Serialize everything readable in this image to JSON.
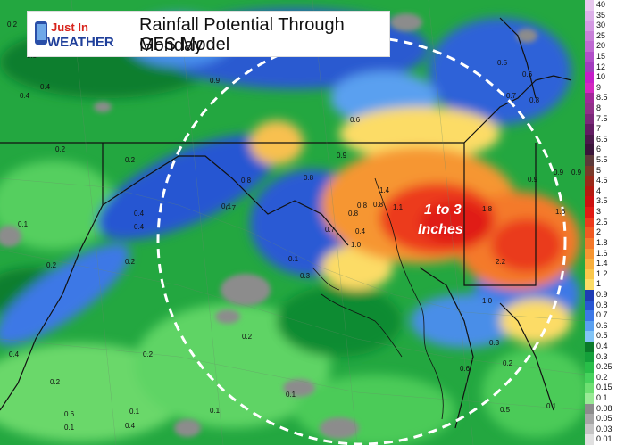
{
  "title": {
    "line1": "Rainfall Potential Through Monday",
    "line2": "GFS Model"
  },
  "logo": {
    "text_top": "Just In",
    "text_bottom": "WEATHER"
  },
  "callout": {
    "line1": "1 to 3",
    "line2": "Inches"
  },
  "legend": [
    {
      "label": "40",
      "color": "#e8c8ee"
    },
    {
      "label": "35",
      "color": "#dcb0e8"
    },
    {
      "label": "30",
      "color": "#d49ae2"
    },
    {
      "label": "25",
      "color": "#c880d8"
    },
    {
      "label": "20",
      "color": "#bf6ad2"
    },
    {
      "label": "15",
      "color": "#b04ec8"
    },
    {
      "label": "12",
      "color": "#a23cbe"
    },
    {
      "label": "10",
      "color": "#c41ec8"
    },
    {
      "label": "9",
      "color": "#d228c0"
    },
    {
      "label": "8.5",
      "color": "#a02898"
    },
    {
      "label": "8",
      "color": "#903088"
    },
    {
      "label": "7.5",
      "color": "#7a2878"
    },
    {
      "label": "7",
      "color": "#621c62"
    },
    {
      "label": "6.5",
      "color": "#4a1a4a"
    },
    {
      "label": "6",
      "color": "#3a163a"
    },
    {
      "label": "5.5",
      "color": "#5c3a3a"
    },
    {
      "label": "5",
      "color": "#7a3a2a"
    },
    {
      "label": "4.5",
      "color": "#9a2a1a"
    },
    {
      "label": "4",
      "color": "#b41a10"
    },
    {
      "label": "3.5",
      "color": "#cc1010"
    },
    {
      "label": "3",
      "color": "#e01a14"
    },
    {
      "label": "2.5",
      "color": "#ec3a1c"
    },
    {
      "label": "2",
      "color": "#f05a22"
    },
    {
      "label": "1.8",
      "color": "#f4782a"
    },
    {
      "label": "1.6",
      "color": "#f69632"
    },
    {
      "label": "1.4",
      "color": "#f8b03e"
    },
    {
      "label": "1.2",
      "color": "#fac84c"
    },
    {
      "label": "1",
      "color": "#fcdc66"
    },
    {
      "label": "0.9",
      "color": "#1e3cb4"
    },
    {
      "label": "0.8",
      "color": "#2856d2"
    },
    {
      "label": "0.7",
      "color": "#3c78e6"
    },
    {
      "label": "0.6",
      "color": "#5aa0f0"
    },
    {
      "label": "0.5",
      "color": "#82c4f6"
    },
    {
      "label": "0.4",
      "color": "#0a7a2a"
    },
    {
      "label": "0.3",
      "color": "#14a03a"
    },
    {
      "label": "0.25",
      "color": "#28be48"
    },
    {
      "label": "0.2",
      "color": "#46d25c"
    },
    {
      "label": "0.15",
      "color": "#6ee072"
    },
    {
      "label": "0.1",
      "color": "#9aea96"
    },
    {
      "label": "0.08",
      "color": "#8c8c8c"
    },
    {
      "label": "0.05",
      "color": "#a6a6a6"
    },
    {
      "label": "0.03",
      "color": "#c4c4c4"
    },
    {
      "label": "0.01",
      "color": "#e0e0e0"
    }
  ],
  "map_values": [
    {
      "v": "0.2"
    },
    {
      "v": "0.3"
    },
    {
      "v": "0.4"
    },
    {
      "v": "0.4"
    },
    {
      "v": "0.9"
    },
    {
      "v": "0.6"
    },
    {
      "v": "0.8"
    },
    {
      "v": "0.8"
    },
    {
      "v": "0.9"
    },
    {
      "v": "0.5"
    },
    {
      "v": "0.6"
    },
    {
      "v": "0.8"
    },
    {
      "v": "0.7"
    },
    {
      "v": "0.2"
    },
    {
      "v": "0.2"
    },
    {
      "v": "0.9"
    },
    {
      "v": "0.4"
    },
    {
      "v": "0.7"
    },
    {
      "v": "0.8"
    },
    {
      "v": "0.8"
    },
    {
      "v": "0.4"
    },
    {
      "v": "1.4"
    },
    {
      "v": "1.1"
    },
    {
      "v": "1.8"
    },
    {
      "v": "0.9"
    },
    {
      "v": "0.9"
    },
    {
      "v": "1.6"
    },
    {
      "v": "0.8"
    },
    {
      "v": "1.0"
    },
    {
      "v": "0.7"
    },
    {
      "v": "0.1"
    },
    {
      "v": "0.1"
    },
    {
      "v": "0.4"
    },
    {
      "v": "0.2"
    },
    {
      "v": "0.2"
    },
    {
      "v": "0.3"
    },
    {
      "v": "0.1"
    },
    {
      "v": "2.2"
    },
    {
      "v": "1.0"
    },
    {
      "v": "0.2"
    },
    {
      "v": "0.2"
    },
    {
      "v": "0.4"
    },
    {
      "v": "0.3"
    },
    {
      "v": "0.2"
    },
    {
      "v": "0.1"
    },
    {
      "v": "0.1"
    },
    {
      "v": "0.1"
    },
    {
      "v": "0.6"
    },
    {
      "v": "0.5"
    },
    {
      "v": "0.1"
    },
    {
      "v": "0.1"
    },
    {
      "v": "0.2"
    },
    {
      "v": "0.4"
    },
    {
      "v": "0.6"
    }
  ]
}
